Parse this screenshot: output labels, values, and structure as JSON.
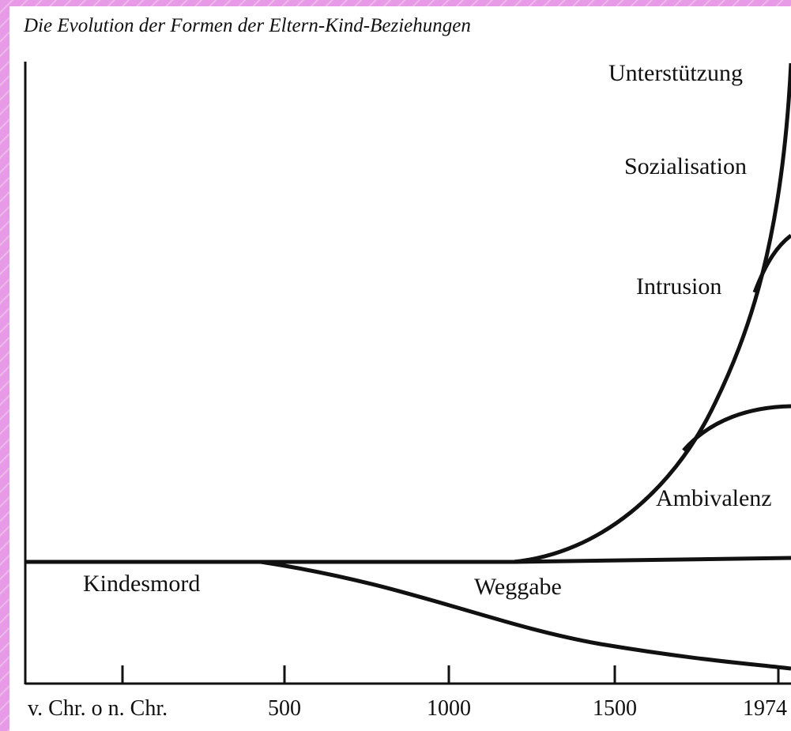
{
  "title": "Die Evolution der Formen der Eltern-Kind-Beziehungen",
  "curve_labels": [
    "Unterstützung",
    "Sozialisation",
    "Intrusion",
    "Ambivalenz",
    "Kindesmord",
    "Weggabe"
  ],
  "x_axis_labels": [
    "v. Chr. o n. Chr.",
    "500",
    "1000",
    "1500",
    "1974"
  ]
}
